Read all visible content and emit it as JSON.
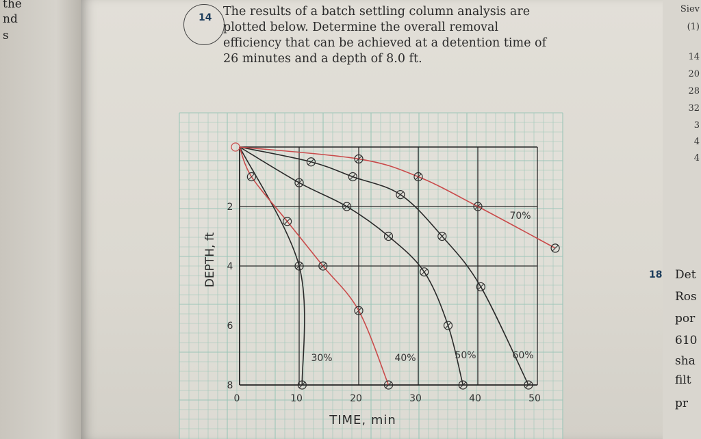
{
  "left_margin_fragments": [
    "the",
    "nd",
    "s"
  ],
  "problem": {
    "number": "14",
    "lines": [
      "The results of a batch settling column analysis are",
      "plotted below. Determine the overall removal",
      "efficiency that can be achieved at a detention time of",
      "26 minutes and a depth of 8.0 ft."
    ]
  },
  "right_margin": {
    "header": [
      "Siev",
      "(1)"
    ],
    "numbers": [
      "14",
      "20",
      "28",
      "32",
      "3",
      "4",
      "4"
    ],
    "next_problem_number": "18",
    "next_problem_fragments": [
      "Det",
      "Ros",
      "por",
      "610",
      "sha",
      "filt",
      "pr"
    ]
  },
  "chart_data": {
    "type": "line",
    "xlabel": "TIME, min",
    "ylabel": "DEPTH, ft",
    "xlim": [
      0,
      50
    ],
    "ylim": [
      8,
      0
    ],
    "x_ticks": [
      0,
      10,
      20,
      30,
      40,
      50
    ],
    "x_tick_labels": [
      "0",
      "10",
      "20",
      "30",
      "40",
      "50"
    ],
    "y_ticks": [
      0,
      2,
      4,
      6,
      8
    ],
    "y_tick_labels": [
      "0",
      "2",
      "4",
      "6",
      "8"
    ],
    "grid": true,
    "series": [
      {
        "name": "30%",
        "color": "#2a2a2a",
        "points": [
          [
            0,
            0
          ],
          [
            10,
            4
          ],
          [
            10.5,
            8
          ]
        ]
      },
      {
        "name": "40%",
        "color": "#c94a4a",
        "points": [
          [
            0,
            0
          ],
          [
            2,
            1
          ],
          [
            8,
            2.5
          ],
          [
            14,
            4
          ],
          [
            20,
            5.5
          ],
          [
            25,
            8
          ]
        ]
      },
      {
        "name": "50%",
        "color": "#2a2a2a",
        "points": [
          [
            0,
            0
          ],
          [
            10,
            1.2
          ],
          [
            18,
            2
          ],
          [
            25,
            3
          ],
          [
            31,
            4.2
          ],
          [
            35,
            6
          ],
          [
            37.5,
            8
          ]
        ]
      },
      {
        "name": "60%",
        "color": "#2a2a2a",
        "points": [
          [
            0,
            0
          ],
          [
            12,
            0.5
          ],
          [
            19,
            1
          ],
          [
            27,
            1.6
          ],
          [
            34,
            3
          ],
          [
            40.5,
            4.7
          ],
          [
            48.5,
            8
          ]
        ]
      },
      {
        "name": "70%",
        "color": "#c94a4a",
        "points": [
          [
            0,
            0
          ],
          [
            20,
            0.4
          ],
          [
            30,
            1
          ],
          [
            40,
            2
          ],
          [
            53,
            3.4
          ]
        ]
      }
    ],
    "gridlines_emphasized": [
      {
        "axis": "x",
        "value": 10
      },
      {
        "axis": "x",
        "value": 20
      },
      {
        "axis": "x",
        "value": 30
      },
      {
        "axis": "x",
        "value": 40
      },
      {
        "axis": "x",
        "value": 50
      },
      {
        "axis": "y",
        "value": 2
      },
      {
        "axis": "y",
        "value": 4
      }
    ]
  }
}
